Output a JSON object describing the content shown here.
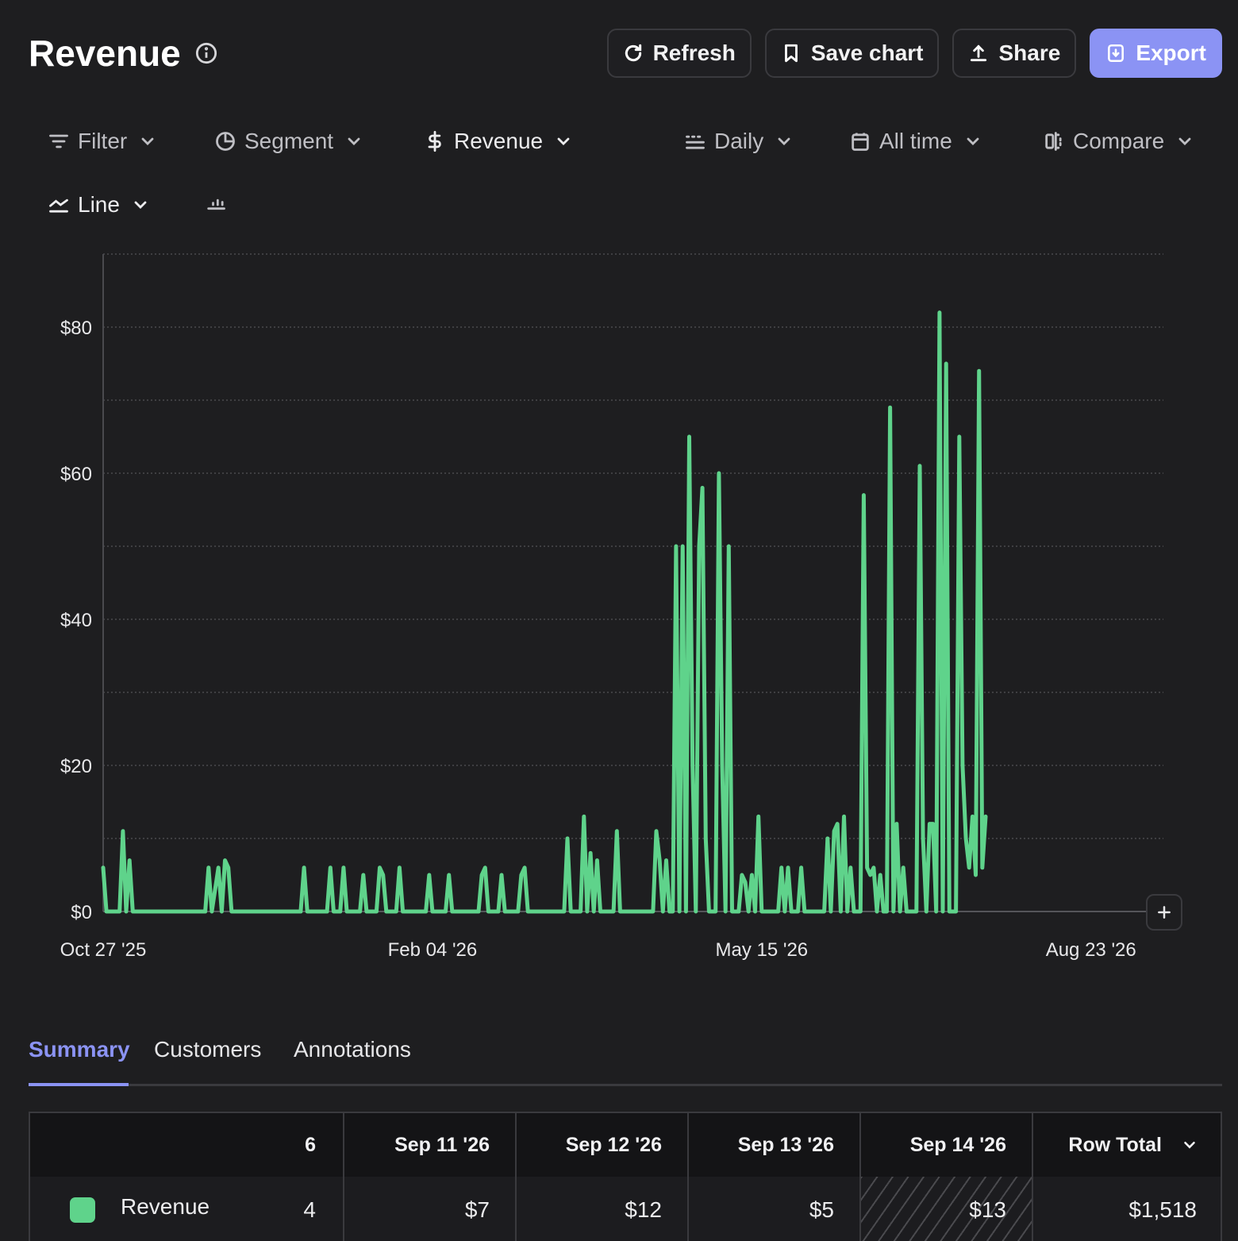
{
  "header": {
    "title": "Revenue"
  },
  "actions": {
    "refresh": "Refresh",
    "save_chart": "Save chart",
    "share": "Share",
    "export": "Export"
  },
  "controls": {
    "filter": "Filter",
    "segment": "Segment",
    "metric": "Revenue",
    "interval": "Daily",
    "range": "All time",
    "compare": "Compare",
    "chart_type": "Line"
  },
  "colors": {
    "accent": "#8b93f4",
    "series": "#5fd38b",
    "background": "#1e1e20"
  },
  "chart_data": {
    "type": "line",
    "title": "",
    "xlabel": "",
    "ylabel": "",
    "x_range": [
      "2025-10-27",
      "2026-09-14"
    ],
    "ylim": [
      0,
      90
    ],
    "yticks": [
      "$0",
      "$20",
      "$40",
      "$60",
      "$80"
    ],
    "ytick_values": [
      0,
      20,
      40,
      60,
      80
    ],
    "xticks": [
      "Oct 27 '25",
      "Feb 04 '26",
      "May 15 '26",
      "Aug 23 '26"
    ],
    "xtick_values": [
      "2025-10-27",
      "2026-02-04",
      "2026-05-15",
      "2026-08-23"
    ],
    "grid": true,
    "series": [
      {
        "name": "Revenue",
        "points": [
          [
            "2025-10-27",
            6
          ],
          [
            "2025-10-28",
            0
          ],
          [
            "2025-11-01",
            0
          ],
          [
            "2025-11-02",
            11
          ],
          [
            "2025-11-03",
            0
          ],
          [
            "2025-11-04",
            7
          ],
          [
            "2025-11-05",
            0
          ],
          [
            "2025-11-27",
            0
          ],
          [
            "2025-11-28",
            6
          ],
          [
            "2025-11-29",
            0
          ],
          [
            "2025-12-01",
            6
          ],
          [
            "2025-12-02",
            0
          ],
          [
            "2025-12-03",
            7
          ],
          [
            "2025-12-04",
            6
          ],
          [
            "2025-12-05",
            0
          ],
          [
            "2025-12-26",
            0
          ],
          [
            "2025-12-27",
            6
          ],
          [
            "2025-12-28",
            0
          ],
          [
            "2026-01-03",
            0
          ],
          [
            "2026-01-04",
            6
          ],
          [
            "2026-01-05",
            0
          ],
          [
            "2026-01-07",
            0
          ],
          [
            "2026-01-08",
            6
          ],
          [
            "2026-01-09",
            0
          ],
          [
            "2026-01-13",
            0
          ],
          [
            "2026-01-14",
            5
          ],
          [
            "2026-01-15",
            0
          ],
          [
            "2026-01-18",
            0
          ],
          [
            "2026-01-19",
            6
          ],
          [
            "2026-01-20",
            5
          ],
          [
            "2026-01-21",
            0
          ],
          [
            "2026-01-24",
            0
          ],
          [
            "2026-01-25",
            6
          ],
          [
            "2026-01-26",
            0
          ],
          [
            "2026-02-02",
            0
          ],
          [
            "2026-02-03",
            5
          ],
          [
            "2026-02-04",
            0
          ],
          [
            "2026-02-08",
            0
          ],
          [
            "2026-02-09",
            5
          ],
          [
            "2026-02-10",
            0
          ],
          [
            "2026-02-18",
            0
          ],
          [
            "2026-02-19",
            5
          ],
          [
            "2026-02-20",
            6
          ],
          [
            "2026-02-21",
            0
          ],
          [
            "2026-02-24",
            0
          ],
          [
            "2026-02-25",
            5
          ],
          [
            "2026-02-26",
            0
          ],
          [
            "2026-03-02",
            0
          ],
          [
            "2026-03-03",
            5
          ],
          [
            "2026-03-04",
            6
          ],
          [
            "2026-03-05",
            0
          ],
          [
            "2026-03-16",
            0
          ],
          [
            "2026-03-17",
            10
          ],
          [
            "2026-03-18",
            0
          ],
          [
            "2026-03-21",
            0
          ],
          [
            "2026-03-22",
            13
          ],
          [
            "2026-03-23",
            0
          ],
          [
            "2026-03-24",
            8
          ],
          [
            "2026-03-25",
            0
          ],
          [
            "2026-03-26",
            7
          ],
          [
            "2026-03-27",
            0
          ],
          [
            "2026-03-31",
            0
          ],
          [
            "2026-04-01",
            11
          ],
          [
            "2026-04-02",
            0
          ],
          [
            "2026-04-12",
            0
          ],
          [
            "2026-04-13",
            11
          ],
          [
            "2026-04-14",
            7
          ],
          [
            "2026-04-15",
            0
          ],
          [
            "2026-04-16",
            7
          ],
          [
            "2026-04-17",
            0
          ],
          [
            "2026-04-18",
            0
          ],
          [
            "2026-04-19",
            50
          ],
          [
            "2026-04-20",
            0
          ],
          [
            "2026-04-21",
            50
          ],
          [
            "2026-04-22",
            0
          ],
          [
            "2026-04-23",
            65
          ],
          [
            "2026-04-24",
            20
          ],
          [
            "2026-04-25",
            0
          ],
          [
            "2026-04-26",
            50
          ],
          [
            "2026-04-27",
            58
          ],
          [
            "2026-04-28",
            10
          ],
          [
            "2026-04-29",
            0
          ],
          [
            "2026-05-01",
            0
          ],
          [
            "2026-05-02",
            60
          ],
          [
            "2026-05-03",
            20
          ],
          [
            "2026-05-04",
            0
          ],
          [
            "2026-05-05",
            50
          ],
          [
            "2026-05-06",
            0
          ],
          [
            "2026-05-08",
            0
          ],
          [
            "2026-05-09",
            5
          ],
          [
            "2026-05-10",
            4
          ],
          [
            "2026-05-11",
            0
          ],
          [
            "2026-05-12",
            5
          ],
          [
            "2026-05-13",
            0
          ],
          [
            "2026-05-14",
            13
          ],
          [
            "2026-05-15",
            0
          ],
          [
            "2026-05-20",
            0
          ],
          [
            "2026-05-21",
            6
          ],
          [
            "2026-05-22",
            0
          ],
          [
            "2026-05-23",
            6
          ],
          [
            "2026-05-24",
            0
          ],
          [
            "2026-05-26",
            0
          ],
          [
            "2026-05-27",
            6
          ],
          [
            "2026-05-28",
            0
          ],
          [
            "2026-06-03",
            0
          ],
          [
            "2026-06-04",
            10
          ],
          [
            "2026-06-05",
            0
          ],
          [
            "2026-06-06",
            11
          ],
          [
            "2026-06-07",
            12
          ],
          [
            "2026-06-08",
            0
          ],
          [
            "2026-06-09",
            13
          ],
          [
            "2026-06-10",
            0
          ],
          [
            "2026-06-11",
            6
          ],
          [
            "2026-06-12",
            0
          ],
          [
            "2026-06-14",
            0
          ],
          [
            "2026-06-15",
            57
          ],
          [
            "2026-06-16",
            6
          ],
          [
            "2026-06-17",
            5
          ],
          [
            "2026-06-18",
            6
          ],
          [
            "2026-06-19",
            0
          ],
          [
            "2026-06-20",
            5
          ],
          [
            "2026-06-21",
            0
          ],
          [
            "2026-06-22",
            0
          ],
          [
            "2026-06-23",
            69
          ],
          [
            "2026-06-24",
            0
          ],
          [
            "2026-06-25",
            12
          ],
          [
            "2026-06-26",
            0
          ],
          [
            "2026-06-27",
            6
          ],
          [
            "2026-06-28",
            0
          ],
          [
            "2026-07-01",
            0
          ],
          [
            "2026-07-02",
            61
          ],
          [
            "2026-07-03",
            10
          ],
          [
            "2026-07-04",
            0
          ],
          [
            "2026-07-05",
            12
          ],
          [
            "2026-07-06",
            12
          ],
          [
            "2026-07-07",
            0
          ],
          [
            "2026-07-08",
            82
          ],
          [
            "2026-07-09",
            0
          ],
          [
            "2026-07-10",
            75
          ],
          [
            "2026-07-11",
            0
          ],
          [
            "2026-07-12",
            0
          ],
          [
            "2026-07-13",
            0
          ],
          [
            "2026-07-14",
            65
          ],
          [
            "2026-07-15",
            20
          ],
          [
            "2026-07-16",
            10
          ],
          [
            "2026-07-17",
            6
          ],
          [
            "2026-07-18",
            13
          ],
          [
            "2026-07-19",
            5
          ],
          [
            "2026-07-20",
            74
          ],
          [
            "2026-07-21",
            6
          ],
          [
            "2026-07-22",
            13
          ]
        ]
      }
    ]
  },
  "tabs": [
    "Summary",
    "Customers",
    "Annotations"
  ],
  "table": {
    "partial_header": "6",
    "headers": [
      "Sep 11 '26",
      "Sep 12 '26",
      "Sep 13 '26",
      "Sep 14 '26"
    ],
    "row_total_label": "Row Total",
    "rows": [
      {
        "label": "Revenue",
        "partial_value": "4",
        "values": [
          "$7",
          "$12",
          "$5",
          "$13"
        ],
        "total": "$1,518"
      }
    ]
  }
}
